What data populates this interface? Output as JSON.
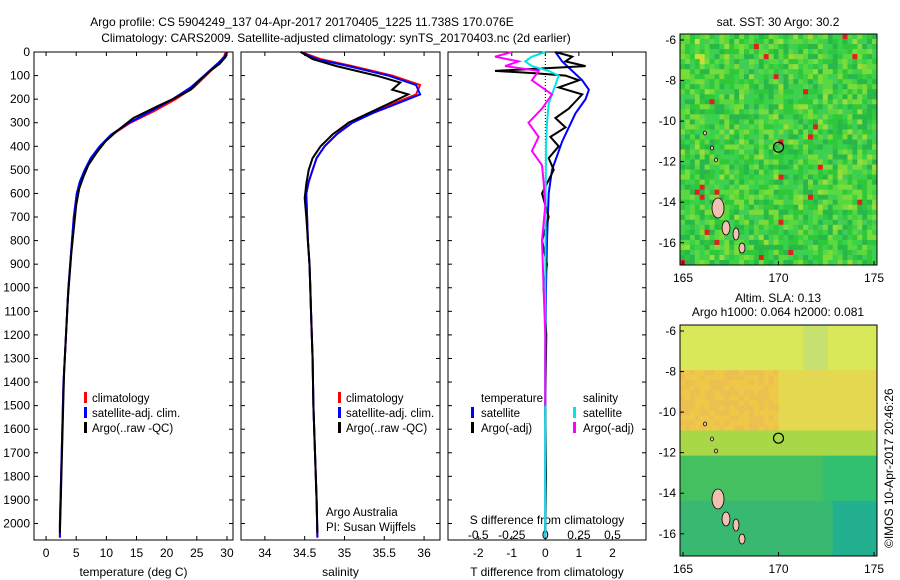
{
  "header": {
    "line1": "Argo profile: CS 5904249_137 04-Apr-2017 20170405_1225 11.738S 170.076E",
    "line2": "Climatology: CARS2009. Satellite-adjusted climatology: synTS_20170403.nc (2d earlier)"
  },
  "colors": {
    "climatology": "#ff0000",
    "satellite": "#0000ff",
    "argo": "#000000",
    "satellite_salinity": "#00e5e5",
    "argo_salinity": "#ff00ff"
  },
  "legend_profile": {
    "items": [
      "climatology",
      "satellite-adj. clim.",
      "Argo(..raw -QC)"
    ]
  },
  "legend_diff": {
    "temperature_title": "temperature",
    "salinity_title": "salinity",
    "temperature_items": [
      "satellite",
      "Argo(-adj)"
    ],
    "salinity_items": [
      "satellite",
      "Argo(-adj)"
    ]
  },
  "credit": {
    "line1": "Argo Australia",
    "line2": "PI: Susan Wijffels"
  },
  "maps": {
    "sst": {
      "title": "sat. SST: 30 Argo: 30.2",
      "xticks": [
        "165",
        "170",
        "175"
      ],
      "yticks": [
        "-6",
        "-8",
        "-10",
        "-12",
        "-14",
        "-16"
      ]
    },
    "sla": {
      "title1": "Altim. SLA: 0.13",
      "title2": "Argo h1000: 0.064 h2000: 0.081",
      "xticks": [
        "165",
        "170",
        "175"
      ],
      "yticks": [
        "-6",
        "-8",
        "-10",
        "-12",
        "-14",
        "-16"
      ]
    },
    "stamp": "©IMOS 10-Apr-2017 20:46:26"
  },
  "chart_data": [
    {
      "type": "line",
      "xlabel": "temperature (deg C)",
      "xlim": [
        -2,
        31
      ],
      "xticks": [
        0,
        5,
        10,
        15,
        20,
        25,
        30
      ],
      "ylim": [
        2070,
        0
      ],
      "yticks": [
        0,
        100,
        200,
        300,
        400,
        500,
        600,
        700,
        800,
        900,
        1000,
        1100,
        1200,
        1300,
        1400,
        1500,
        1600,
        1700,
        1800,
        1900,
        2000
      ],
      "series": [
        {
          "name": "climatology",
          "color": "#ff0000",
          "points": [
            [
              29.8,
              0
            ],
            [
              29.5,
              20
            ],
            [
              28.5,
              50
            ],
            [
              26.5,
              100
            ],
            [
              24.5,
              150
            ],
            [
              21.5,
              200
            ],
            [
              18,
              250
            ],
            [
              14,
              300
            ],
            [
              11,
              350
            ],
            [
              9,
              400
            ],
            [
              7.5,
              450
            ],
            [
              6.5,
              500
            ],
            [
              5.7,
              550
            ],
            [
              5.1,
              600
            ],
            [
              4.6,
              700
            ],
            [
              4.3,
              800
            ],
            [
              4,
              900
            ],
            [
              3.7,
              1000
            ],
            [
              3.5,
              1100
            ],
            [
              3.3,
              1200
            ],
            [
              3.1,
              1300
            ],
            [
              2.9,
              1400
            ],
            [
              2.8,
              1500
            ],
            [
              2.7,
              1600
            ],
            [
              2.6,
              1700
            ],
            [
              2.5,
              1800
            ],
            [
              2.4,
              1900
            ],
            [
              2.3,
              2000
            ],
            [
              2.3,
              2060
            ]
          ]
        },
        {
          "name": "satellite-adj. clim.",
          "color": "#0000ff",
          "points": [
            [
              30,
              0
            ],
            [
              29.6,
              20
            ],
            [
              28.4,
              50
            ],
            [
              26.2,
              100
            ],
            [
              24,
              150
            ],
            [
              21,
              200
            ],
            [
              17.5,
              250
            ],
            [
              13.8,
              300
            ],
            [
              10.8,
              350
            ],
            [
              8.9,
              400
            ],
            [
              7.4,
              450
            ],
            [
              6.4,
              500
            ],
            [
              5.6,
              550
            ],
            [
              5.1,
              600
            ],
            [
              4.6,
              700
            ],
            [
              4.3,
              800
            ],
            [
              4,
              900
            ],
            [
              3.7,
              1000
            ],
            [
              3.5,
              1100
            ],
            [
              3.3,
              1200
            ],
            [
              3.1,
              1300
            ],
            [
              2.9,
              1400
            ],
            [
              2.8,
              1500
            ],
            [
              2.7,
              1600
            ],
            [
              2.6,
              1700
            ],
            [
              2.5,
              1800
            ],
            [
              2.4,
              1900
            ],
            [
              2.3,
              2000
            ],
            [
              2.3,
              2060
            ]
          ]
        },
        {
          "name": "Argo(..raw -QC)",
          "color": "#000000",
          "points": [
            [
              30,
              0
            ],
            [
              29.8,
              20
            ],
            [
              28.8,
              50
            ],
            [
              27.2,
              80
            ],
            [
              25.5,
              120
            ],
            [
              24,
              160
            ],
            [
              21,
              200
            ],
            [
              18.5,
              230
            ],
            [
              14.5,
              280
            ],
            [
              12,
              330
            ],
            [
              9.8,
              380
            ],
            [
              8.3,
              430
            ],
            [
              7,
              480
            ],
            [
              6.2,
              530
            ],
            [
              5.5,
              580
            ],
            [
              5,
              650
            ],
            [
              4.6,
              750
            ],
            [
              4.2,
              850
            ],
            [
              3.9,
              950
            ],
            [
              3.6,
              1050
            ],
            [
              3.4,
              1150
            ],
            [
              3.2,
              1250
            ],
            [
              3,
              1350
            ],
            [
              2.9,
              1450
            ],
            [
              2.8,
              1550
            ],
            [
              2.7,
              1650
            ],
            [
              2.6,
              1750
            ],
            [
              2.5,
              1850
            ],
            [
              2.4,
              1950
            ],
            [
              2.3,
              2040
            ]
          ]
        }
      ]
    },
    {
      "type": "line",
      "xlabel": "salinity",
      "xlim": [
        33.7,
        36.2
      ],
      "xticks": [
        34,
        34.5,
        35,
        35.5,
        36
      ],
      "ylim": [
        2070,
        0
      ],
      "series": [
        {
          "name": "climatology",
          "color": "#ff0000",
          "points": [
            [
              34.45,
              0
            ],
            [
              34.7,
              30
            ],
            [
              35.1,
              60
            ],
            [
              35.6,
              100
            ],
            [
              35.95,
              140
            ],
            [
              35.9,
              180
            ],
            [
              35.6,
              220
            ],
            [
              35.3,
              260
            ],
            [
              35.05,
              300
            ],
            [
              34.9,
              350
            ],
            [
              34.75,
              400
            ],
            [
              34.65,
              450
            ],
            [
              34.6,
              500
            ],
            [
              34.55,
              550
            ],
            [
              34.52,
              600
            ],
            [
              34.53,
              700
            ],
            [
              34.54,
              800
            ],
            [
              34.56,
              900
            ],
            [
              34.57,
              1000
            ],
            [
              34.58,
              1100
            ],
            [
              34.6,
              1300
            ],
            [
              34.61,
              1500
            ],
            [
              34.63,
              1700
            ],
            [
              34.65,
              1900
            ],
            [
              34.66,
              2060
            ]
          ]
        },
        {
          "name": "satellite-adj. clim.",
          "color": "#0000ff",
          "points": [
            [
              34.45,
              0
            ],
            [
              34.65,
              30
            ],
            [
              35.05,
              60
            ],
            [
              35.55,
              100
            ],
            [
              35.9,
              140
            ],
            [
              35.95,
              180
            ],
            [
              35.65,
              220
            ],
            [
              35.35,
              260
            ],
            [
              35.1,
              300
            ],
            [
              34.9,
              350
            ],
            [
              34.75,
              400
            ],
            [
              34.65,
              450
            ],
            [
              34.6,
              500
            ],
            [
              34.55,
              550
            ],
            [
              34.52,
              600
            ],
            [
              34.53,
              700
            ],
            [
              34.54,
              800
            ],
            [
              34.56,
              900
            ],
            [
              34.57,
              1000
            ],
            [
              34.58,
              1100
            ],
            [
              34.6,
              1300
            ],
            [
              34.61,
              1500
            ],
            [
              34.63,
              1700
            ],
            [
              34.65,
              1900
            ],
            [
              34.66,
              2060
            ]
          ]
        },
        {
          "name": "Argo(..raw -QC)",
          "color": "#000000",
          "points": [
            [
              34.45,
              0
            ],
            [
              34.6,
              30
            ],
            [
              34.9,
              60
            ],
            [
              35.4,
              100
            ],
            [
              35.7,
              130
            ],
            [
              35.6,
              160
            ],
            [
              35.8,
              180
            ],
            [
              35.55,
              220
            ],
            [
              35.3,
              260
            ],
            [
              35.05,
              300
            ],
            [
              34.85,
              350
            ],
            [
              34.7,
              400
            ],
            [
              34.6,
              450
            ],
            [
              34.55,
              500
            ],
            [
              34.52,
              560
            ],
            [
              34.5,
              620
            ],
            [
              34.52,
              700
            ],
            [
              34.54,
              800
            ],
            [
              34.56,
              900
            ],
            [
              34.57,
              1000
            ],
            [
              34.58,
              1100
            ],
            [
              34.6,
              1300
            ],
            [
              34.61,
              1500
            ],
            [
              34.63,
              1700
            ],
            [
              34.65,
              1900
            ],
            [
              34.66,
              2040
            ]
          ]
        }
      ]
    },
    {
      "type": "line",
      "xlabel": "T difference from climatology",
      "xlabel_top": "S difference from climatology",
      "xlim": [
        -2.9,
        3
      ],
      "xticks": [
        -2,
        -1,
        0,
        1,
        2
      ],
      "xticks_S": [
        -0.5,
        -0.25,
        0,
        0.25,
        0.5
      ],
      "ylim": [
        2070,
        0
      ],
      "series": [
        {
          "name": "T satellite",
          "color": "#0000ff",
          "points": [
            [
              0.3,
              0
            ],
            [
              0.5,
              40
            ],
            [
              0.8,
              80
            ],
            [
              1.1,
              120
            ],
            [
              1.3,
              160
            ],
            [
              1.2,
              200
            ],
            [
              0.9,
              260
            ],
            [
              0.7,
              320
            ],
            [
              0.5,
              380
            ],
            [
              0.35,
              440
            ],
            [
              0.2,
              500
            ],
            [
              0.1,
              600
            ],
            [
              0.05,
              800
            ],
            [
              0.02,
              1000
            ],
            [
              0,
              1300
            ],
            [
              0,
              2060
            ]
          ]
        },
        {
          "name": "T Argo(-adj)",
          "color": "#000000",
          "points": [
            [
              0.3,
              0
            ],
            [
              0.8,
              20
            ],
            [
              0.6,
              40
            ],
            [
              1.2,
              60
            ],
            [
              -1.5,
              80
            ],
            [
              -0.3,
              90
            ],
            [
              0.6,
              100
            ],
            [
              1.0,
              120
            ],
            [
              0.4,
              150
            ],
            [
              1.1,
              180
            ],
            [
              0.9,
              210
            ],
            [
              0.7,
              240
            ],
            [
              0.3,
              280
            ],
            [
              0.6,
              320
            ],
            [
              0.15,
              360
            ],
            [
              0.4,
              400
            ],
            [
              0.1,
              450
            ],
            [
              0.25,
              500
            ],
            [
              -0.1,
              600
            ],
            [
              0.1,
              700
            ],
            [
              -0.1,
              800
            ],
            [
              0.05,
              900
            ],
            [
              -0.05,
              1000
            ],
            [
              0.03,
              1200
            ],
            [
              0,
              1500
            ],
            [
              0.02,
              1800
            ],
            [
              0,
              2040
            ]
          ]
        },
        {
          "name": "S satellite",
          "color": "#00e5e5",
          "points": [
            [
              0,
              0
            ],
            [
              -0.4,
              20
            ],
            [
              -0.6,
              40
            ],
            [
              -0.4,
              60
            ],
            [
              0.1,
              80
            ],
            [
              0.4,
              100
            ],
            [
              0.3,
              140
            ],
            [
              0.2,
              180
            ],
            [
              0.1,
              220
            ],
            [
              0.05,
              300
            ],
            [
              0.02,
              400
            ],
            [
              0.01,
              600
            ],
            [
              0,
              1000
            ],
            [
              0,
              2060
            ]
          ]
        },
        {
          "name": "S Argo(-adj)",
          "color": "#ff00ff",
          "points": [
            [
              -1,
              0
            ],
            [
              -1.5,
              20
            ],
            [
              -0.8,
              40
            ],
            [
              -1.2,
              60
            ],
            [
              -0.2,
              80
            ],
            [
              -0.4,
              120
            ],
            [
              0.2,
              180
            ],
            [
              -0.1,
              240
            ],
            [
              -0.5,
              300
            ],
            [
              -0.2,
              360
            ],
            [
              -0.4,
              420
            ],
            [
              -0.1,
              480
            ],
            [
              -0.05,
              550
            ],
            [
              0,
              650
            ],
            [
              -0.1,
              800
            ],
            [
              -0.05,
              1000
            ],
            [
              0,
              1200
            ],
            [
              0,
              1500
            ]
          ]
        }
      ]
    }
  ]
}
